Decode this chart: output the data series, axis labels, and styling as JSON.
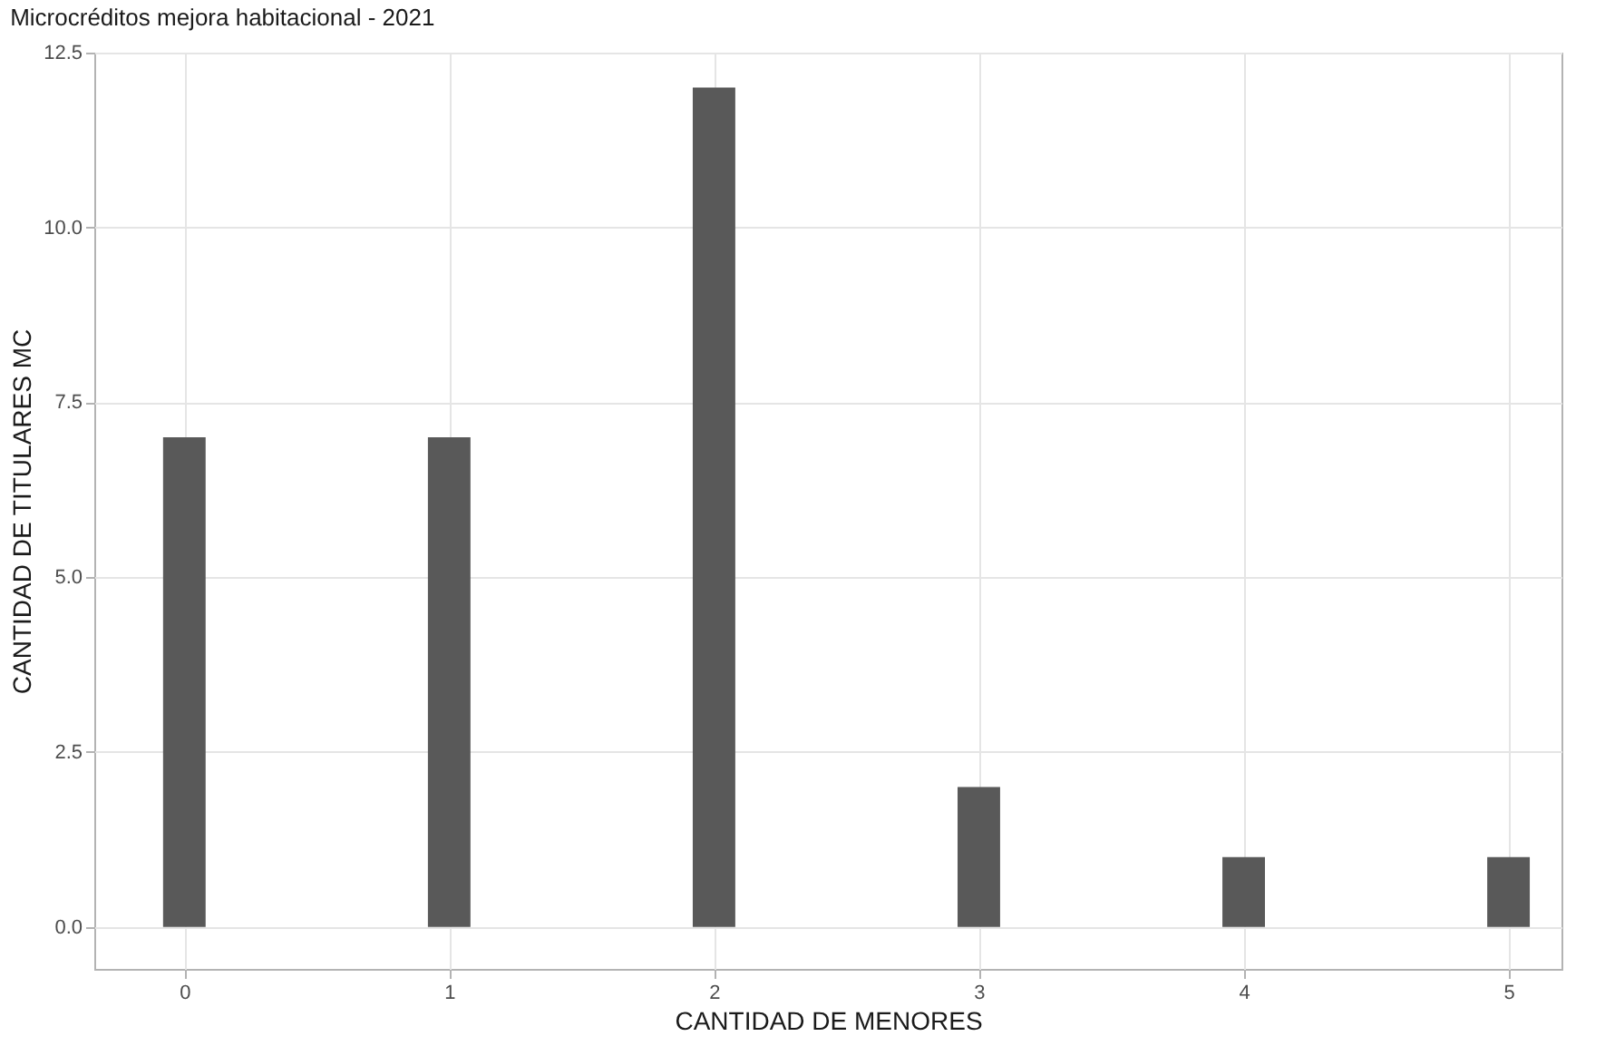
{
  "chart_data": {
    "type": "bar",
    "title": "Microcréditos mejora habitacional - 2021",
    "xlabel": "CANTIDAD DE MENORES",
    "ylabel": "CANTIDAD DE TITULARES MC",
    "x": [
      0,
      1,
      2,
      3,
      4,
      5
    ],
    "values": [
      7,
      7,
      12,
      2,
      1,
      1
    ],
    "color": "#595959",
    "xlim": [
      -0.34,
      5.2
    ],
    "xticks": [
      0,
      1,
      2,
      3,
      4,
      5
    ],
    "ylim": [
      -0.6,
      12.5
    ],
    "yticks": [
      {
        "value": 0,
        "label": "0.0"
      },
      2.5,
      {
        "value": 5,
        "label": "5.0"
      },
      7.5,
      {
        "value": 10,
        "label": "10.0"
      },
      12.5
    ],
    "grid": true
  }
}
